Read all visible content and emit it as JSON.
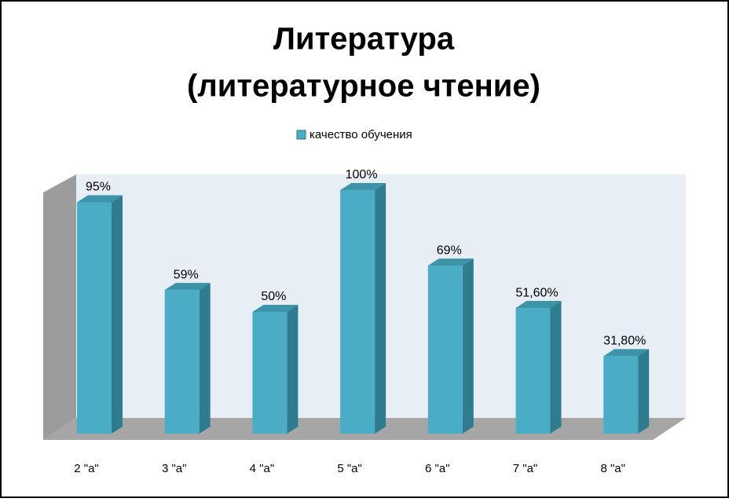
{
  "chart_data": {
    "type": "bar3d",
    "title": [
      "Литература",
      "(литературное чтение)"
    ],
    "categories": [
      "2 \"а\"",
      "3 \"а\"",
      "4 \"а\"",
      "5 \"а\"",
      "6 \"а\"",
      "7 \"а\"",
      "8 \"а\""
    ],
    "series": [
      {
        "name": "качество обучения",
        "color": "#4bacc6",
        "values": [
          95,
          59,
          50,
          100,
          69,
          51.6,
          31.8
        ],
        "value_labels": [
          "95%",
          "59%",
          "50%",
          "100%",
          "69%",
          "51,60%",
          "31,80%"
        ]
      }
    ],
    "ylim": [
      0,
      100
    ],
    "legend": "top"
  }
}
